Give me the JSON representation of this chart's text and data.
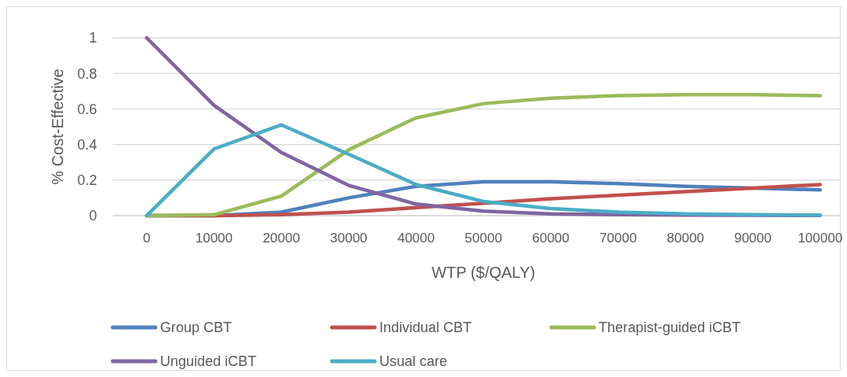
{
  "chart_data": {
    "type": "line",
    "xlabel": "WTP ($/QALY)",
    "ylabel": "% Cost-Effective",
    "categories": [
      "0",
      "10000",
      "20000",
      "30000",
      "40000",
      "50000",
      "60000",
      "70000",
      "80000",
      "90000",
      "100000"
    ],
    "ylim": [
      0,
      1
    ],
    "yticks": [
      0,
      0.2,
      0.4,
      0.6,
      0.8,
      1
    ],
    "grid": "y",
    "legend": "bottom",
    "line_style": "solid",
    "marker": "none",
    "series": [
      {
        "name": "Group CBT",
        "color": "#4f81bd",
        "values": [
          0,
          0,
          0.02,
          0.1,
          0.165,
          0.19,
          0.19,
          0.18,
          0.165,
          0.155,
          0.145
        ]
      },
      {
        "name": "Individual CBT",
        "color": "#c0504d",
        "values": [
          0,
          0,
          0.005,
          0.02,
          0.045,
          0.07,
          0.095,
          0.115,
          0.135,
          0.155,
          0.175
        ]
      },
      {
        "name": "Therapist-guided iCBT",
        "color": "#9bbb59",
        "values": [
          0,
          0.005,
          0.11,
          0.37,
          0.55,
          0.63,
          0.66,
          0.675,
          0.68,
          0.68,
          0.675
        ]
      },
      {
        "name": "Unguided iCBT",
        "color": "#8064a2",
        "values": [
          1,
          0.62,
          0.355,
          0.17,
          0.065,
          0.025,
          0.01,
          0.005,
          0.003,
          0.002,
          0.001
        ]
      },
      {
        "name": "Usual care",
        "color": "#4bacc6",
        "values": [
          0,
          0.375,
          0.51,
          0.345,
          0.175,
          0.08,
          0.04,
          0.02,
          0.01,
          0.005,
          0.003
        ]
      }
    ]
  }
}
